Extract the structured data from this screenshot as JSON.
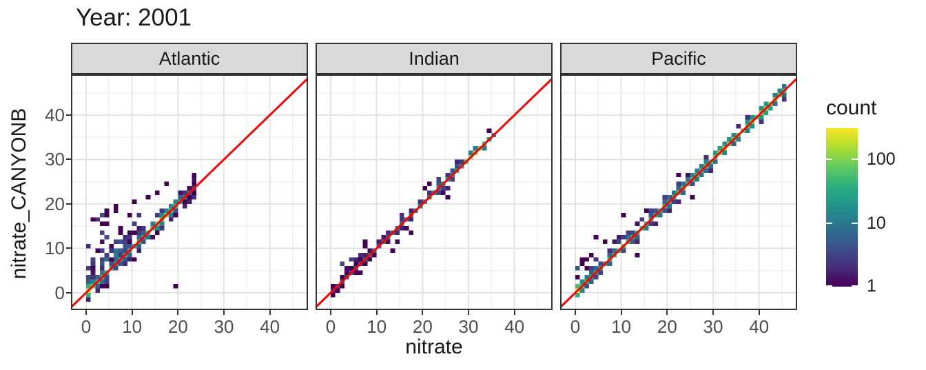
{
  "title": "Year: 2001",
  "chart_data": {
    "type": "heatmap",
    "subtype": "bin2d_faceted_scatter",
    "title": "Year: 2001",
    "xlabel": "nitrate",
    "ylabel": "nitrate_CANYONB",
    "x_ticks": [
      0,
      10,
      20,
      30,
      40
    ],
    "y_ticks": [
      0,
      10,
      20,
      30,
      40
    ],
    "x_minor_ticks": [
      5,
      15,
      25,
      35,
      45
    ],
    "y_minor_ticks": [
      5,
      15,
      25,
      35,
      45
    ],
    "x_range": [
      -3.3,
      48.3
    ],
    "y_range": [
      -3.9,
      49.15
    ],
    "binwidth": 1,
    "grid": "on",
    "identity_line": {
      "slope": 1,
      "intercept": 0,
      "color": "#ff0000",
      "width": 3
    },
    "legend": {
      "title": "count",
      "scale": "log10",
      "tick_values": [
        100,
        10,
        1
      ],
      "tick_labels": [
        "100",
        "10",
        "1"
      ],
      "domain": [
        1,
        300
      ],
      "position": "right",
      "palette_name": "viridis"
    },
    "palette_stops": [
      "#440154",
      "#472d7b",
      "#3b528b",
      "#2c728e",
      "#21918c",
      "#27ad81",
      "#5ec962",
      "#aadc32",
      "#fde725"
    ],
    "facets": [
      {
        "label": "Atlantic",
        "seed": 11,
        "diag_max": 23,
        "diag_profile": [
          [
            0,
            210
          ],
          [
            1,
            80
          ],
          [
            3,
            40
          ],
          [
            6,
            35
          ],
          [
            9,
            45
          ],
          [
            12,
            35
          ],
          [
            15,
            85
          ],
          [
            17,
            120
          ],
          [
            19,
            55
          ],
          [
            21,
            14
          ],
          [
            23,
            4
          ]
        ],
        "band_prob": 0.9,
        "band2_prob": 0.45,
        "cloud": {
          "x_min": 0,
          "x_max": 12,
          "max_dy": 8,
          "density": 0.62,
          "count_max": 12
        },
        "spray": {
          "n": 42,
          "x_min": 0,
          "x_max": 10,
          "y_min": 5,
          "y_max": 18
        },
        "below": {
          "x_min": 4,
          "x_max": 20,
          "max_dy": 5,
          "density": 0.26
        },
        "outliers": [
          [
            23,
            26
          ],
          [
            17,
            24
          ],
          [
            15,
            22
          ],
          [
            19,
            1
          ],
          [
            10,
            20
          ],
          [
            3,
            17
          ],
          [
            1,
            16
          ],
          [
            6,
            19
          ],
          [
            13,
            21
          ]
        ]
      },
      {
        "label": "Indian",
        "seed": 22,
        "diag_max": 35,
        "diag_profile": [
          [
            0,
            2
          ],
          [
            4,
            5
          ],
          [
            8,
            8
          ],
          [
            12,
            10
          ],
          [
            16,
            12
          ],
          [
            20,
            14
          ],
          [
            24,
            18
          ],
          [
            28,
            35
          ],
          [
            31,
            150
          ],
          [
            33,
            55
          ],
          [
            35,
            16
          ]
        ],
        "band_prob": 0.45,
        "band2_prob": 0.1,
        "cloud": {
          "x_min": 3,
          "x_max": 8,
          "max_dy": 2,
          "density": 0.25,
          "count_max": 3
        },
        "spray": {
          "n": 5,
          "x_min": 2,
          "x_max": 8,
          "y_min": 4,
          "y_max": 9
        },
        "below": {
          "x_min": 10,
          "x_max": 26,
          "max_dy": 3,
          "density": 0.12
        },
        "outliers": [
          [
            13,
            9
          ],
          [
            14,
            11
          ],
          [
            20,
            23
          ],
          [
            21,
            24
          ],
          [
            25,
            21
          ],
          [
            34,
            36
          ],
          [
            6,
            8
          ],
          [
            17,
            13
          ]
        ]
      },
      {
        "label": "Pacific",
        "seed": 33,
        "diag_max": 45,
        "diag_profile": [
          [
            0,
            260
          ],
          [
            1,
            60
          ],
          [
            4,
            30
          ],
          [
            8,
            50
          ],
          [
            12,
            45
          ],
          [
            16,
            40
          ],
          [
            20,
            45
          ],
          [
            24,
            55
          ],
          [
            28,
            60
          ],
          [
            32,
            140
          ],
          [
            35,
            80
          ],
          [
            38,
            95
          ],
          [
            41,
            110
          ],
          [
            44,
            95
          ],
          [
            45,
            45
          ]
        ],
        "band_prob": 0.8,
        "band2_prob": 0.22,
        "cloud": {
          "x_min": 8,
          "x_max": 14,
          "max_dy": 3,
          "density": 0.5,
          "count_max": 6
        },
        "spray": {
          "n": 9,
          "x_min": 0,
          "x_max": 4,
          "y_min": 3,
          "y_max": 8
        },
        "below": {
          "x_min": 16,
          "x_max": 30,
          "max_dy": 3,
          "density": 0.2
        },
        "outliers": [
          [
            1,
            6
          ],
          [
            3,
            8
          ],
          [
            4,
            12
          ],
          [
            6,
            11
          ],
          [
            0,
            5
          ],
          [
            13,
            8
          ],
          [
            25,
            21
          ],
          [
            10,
            17
          ],
          [
            15,
            18
          ],
          [
            22,
            26
          ]
        ]
      }
    ]
  },
  "colors": {
    "strip_bg": "#d9d9d9",
    "panel_border": "#333333",
    "grid_major": "#e3e3e3",
    "grid_minor": "#f0f0f0",
    "tick_label": "#4d4d4d",
    "text": "#1a1a1a",
    "abline": "#ff0000",
    "panel_bg": "#ffffff"
  }
}
